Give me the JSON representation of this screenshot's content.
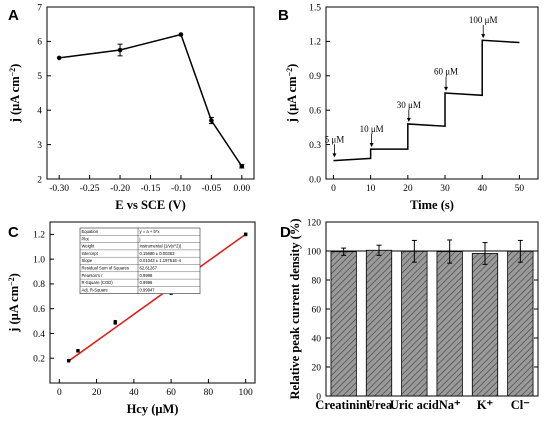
{
  "chart_data": [
    {
      "panel": "A",
      "type": "line",
      "xlabel": "E vs SCE (V)",
      "ylabel_main": "j (μA cm",
      "ylabel_sup": "−2",
      "ylabel_end": ")",
      "xlim": [
        -0.32,
        0.02
      ],
      "ylim": [
        2,
        7
      ],
      "xticks": [
        -0.3,
        -0.25,
        -0.2,
        -0.15,
        -0.1,
        -0.05,
        0.0
      ],
      "xtick_labels": [
        "-0.30",
        "-0.25",
        "-0.20",
        "-0.15",
        "-0.10",
        "-0.05",
        "0.00"
      ],
      "yticks": [
        2,
        3,
        4,
        5,
        6,
        7
      ],
      "ytick_labels": [
        "2",
        "3",
        "4",
        "5",
        "6",
        "7"
      ],
      "x": [
        -0.3,
        -0.2,
        -0.1,
        -0.05,
        0.0
      ],
      "y": [
        5.52,
        5.75,
        6.2,
        3.7,
        2.37
      ],
      "yerr": [
        0.0,
        0.17,
        0.0,
        0.09,
        0.05
      ]
    },
    {
      "panel": "B",
      "type": "line",
      "xlabel": "Time (s)",
      "ylabel_main": "j (μA cm",
      "ylabel_sup": "−2",
      "ylabel_end": ")",
      "xlim": [
        -2,
        55
      ],
      "ylim": [
        0.0,
        1.5
      ],
      "xticks": [
        0,
        10,
        20,
        30,
        40,
        50
      ],
      "xtick_labels": [
        "0",
        "10",
        "20",
        "30",
        "40",
        "50"
      ],
      "yticks": [
        0.0,
        0.3,
        0.6,
        0.9,
        1.2,
        1.5
      ],
      "ytick_labels": [
        "0.0",
        "0.3",
        "0.6",
        "0.9",
        "1.2",
        "1.5"
      ],
      "x": [
        0,
        10,
        10,
        20,
        20,
        30,
        30,
        40,
        40,
        50
      ],
      "y": [
        0.16,
        0.18,
        0.26,
        0.26,
        0.48,
        0.46,
        0.75,
        0.73,
        1.21,
        1.19
      ],
      "annotations": [
        {
          "label": "5 μM",
          "x": 0,
          "y": 0.32,
          "arrow_to": 0.18
        },
        {
          "label": "10 μM",
          "x": 10,
          "y": 0.41,
          "arrow_to": 0.27
        },
        {
          "label": "30 μM",
          "x": 20,
          "y": 0.62,
          "arrow_to": 0.49
        },
        {
          "label": "60 μM",
          "x": 30,
          "y": 0.91,
          "arrow_to": 0.76
        },
        {
          "label": "100 μM",
          "x": 40,
          "y": 1.36,
          "arrow_to": 1.22
        }
      ]
    },
    {
      "panel": "C",
      "type": "scatter",
      "xlabel": "Hcy (μM)",
      "ylabel_main": "j (μA cm",
      "ylabel_sup": "−2",
      "ylabel_end": ")",
      "xlim": [
        -5,
        105
      ],
      "ylim": [
        0.0,
        1.3
      ],
      "xticks": [
        0,
        20,
        40,
        60,
        80,
        100
      ],
      "xtick_labels": [
        "0",
        "20",
        "40",
        "60",
        "80",
        "100"
      ],
      "yticks": [
        0.2,
        0.4,
        0.6,
        0.8,
        1.0,
        1.2
      ],
      "ytick_labels": [
        "0.2",
        "0.4",
        "0.6",
        "0.8",
        "1.0",
        "1.2"
      ],
      "x": [
        5,
        10,
        30,
        60,
        100
      ],
      "y": [
        0.18,
        0.26,
        0.49,
        0.73,
        1.2
      ],
      "yerr": [
        0.01,
        0.01,
        0.015,
        0.015,
        0.01
      ],
      "fit": {
        "x": [
          5,
          100
        ],
        "y": [
          0.177,
          1.201
        ]
      },
      "fit_table": [
        [
          "Equation",
          "y = a + b*x"
        ],
        [
          "Plot",
          "j"
        ],
        [
          "Weight",
          "Instrumental (1/v(x^2))"
        ],
        [
          "Intercept",
          "0.15686 ± 0.00363"
        ],
        [
          "Slope",
          "0.01043 ± 1.19751E-4"
        ],
        [
          "Residual Sum of Squares",
          "62.61267"
        ],
        [
          "Pearson's r",
          "0.9998"
        ],
        [
          "R-Square (COD)",
          "0.9996"
        ],
        [
          "Adj. R-Square",
          "0.99947"
        ]
      ]
    },
    {
      "panel": "D",
      "type": "bar",
      "ylabel": "Relative peak current density (%)",
      "ylim": [
        0,
        120
      ],
      "yticks": [
        0,
        20,
        40,
        60,
        80,
        100,
        120
      ],
      "ytick_labels": [
        "0",
        "20",
        "40",
        "60",
        "80",
        "100",
        "120"
      ],
      "categories": [
        "Creatinine",
        "Urea",
        "Uric acid",
        "Na⁺",
        "K⁺",
        "Cl⁻"
      ],
      "values": [
        99.5,
        100.5,
        99.8,
        99.6,
        98.3,
        99.8
      ],
      "yerr": [
        2.5,
        3.5,
        7.5,
        8.0,
        7.5,
        7.5
      ]
    }
  ]
}
